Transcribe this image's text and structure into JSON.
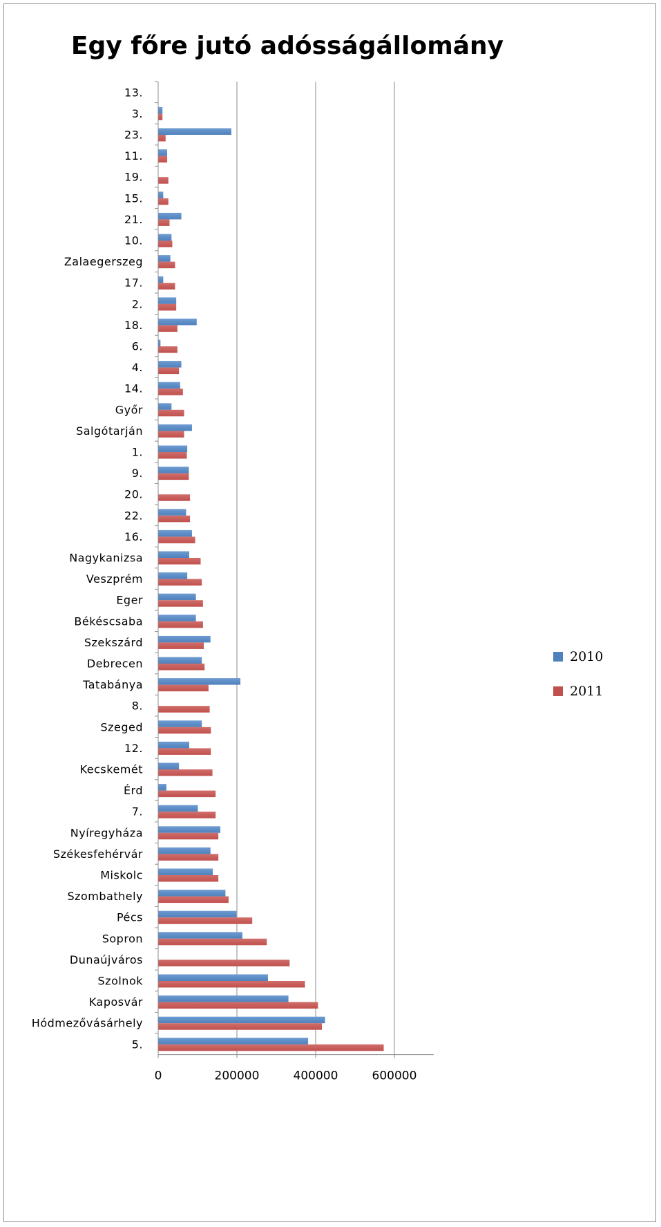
{
  "chart_data": {
    "type": "bar",
    "orientation": "horizontal",
    "title": "Egy főre jutó adósságállomány",
    "xlabel": "",
    "ylabel": "",
    "xlim": [
      0,
      700000
    ],
    "x_ticks": [
      0,
      200000,
      400000,
      600000
    ],
    "grid": "vertical",
    "legend_position": "right",
    "categories": [
      "13.",
      "3.",
      "23.",
      "11.",
      "19.",
      "15.",
      "21.",
      "10.",
      "Zalaegerszeg",
      "17.",
      "2.",
      "18.",
      "6.",
      "4.",
      "14.",
      "Győr",
      "Salgótarján",
      "1.",
      "9.",
      "20.",
      "22.",
      "16.",
      "Nagykanizsa",
      "Veszprém",
      "Eger",
      "Békéscsaba",
      "Szekszárd",
      "Debrecen",
      "Tatabánya",
      "8.",
      "Szeged",
      "12.",
      "Kecskemét",
      "Érd",
      "7.",
      "Nyíregyháza",
      "Székesfehérvár",
      "Miskolc",
      "Szombathely",
      "Pécs",
      "Sopron",
      "Dunaújváros",
      "Szolnok",
      "Kaposvár",
      "Hódmezővásárhely",
      "5."
    ],
    "series": [
      {
        "name": "2010",
        "color": "#4f81bd",
        "values": [
          0,
          10000,
          185000,
          22000,
          0,
          12000,
          58000,
          33000,
          30000,
          12000,
          45000,
          97000,
          5000,
          58000,
          55000,
          33000,
          85000,
          73000,
          77000,
          0,
          70000,
          85000,
          78000,
          73000,
          95000,
          95000,
          132000,
          110000,
          208000,
          0,
          110000,
          78000,
          52000,
          20000,
          100000,
          157000,
          132000,
          138000,
          170000,
          198000,
          213000,
          0,
          278000,
          330000,
          423000,
          380000
        ]
      },
      {
        "name": "2011",
        "color": "#c0504d",
        "values": [
          0,
          10000,
          18000,
          22000,
          25000,
          25000,
          28000,
          35000,
          42000,
          42000,
          45000,
          48000,
          48000,
          52000,
          62000,
          65000,
          65000,
          72000,
          77000,
          80000,
          80000,
          93000,
          107000,
          110000,
          113000,
          113000,
          115000,
          117000,
          127000,
          130000,
          133000,
          133000,
          137000,
          145000,
          145000,
          152000,
          152000,
          152000,
          178000,
          238000,
          275000,
          333000,
          372000,
          405000,
          415000,
          572000
        ]
      }
    ]
  }
}
